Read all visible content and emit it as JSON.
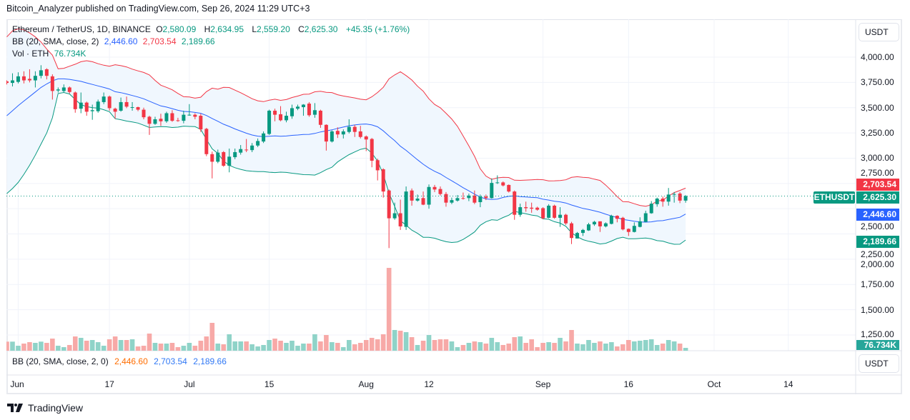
{
  "publication": "Bitcoin_Analyzer published on TradingView.com, Sep 26, 2024 11:29 UTC+3",
  "legend": {
    "symbol": "Ethereum / TetherUS, 1D, BINANCE",
    "open_label": "O",
    "open": "2,580.09",
    "high_label": "H",
    "high": "2,634.95",
    "low_label": "L",
    "low": "2,559.20",
    "close_label": "C",
    "close": "2,625.30",
    "change": "+45.35 (+1.76%)",
    "bb_label": "BB (20, SMA, close, 2)",
    "bb_basis": "2,446.60",
    "bb_upper": "2,703.54",
    "bb_lower": "2,189.66",
    "vol_label": "Vol · ETH",
    "vol_value": "76.734K"
  },
  "bottom_pane": {
    "bb_label": "BB (20, SMA, close, 2, 0)",
    "values": [
      "2,446.60",
      "2,703.54",
      "2,189.66"
    ],
    "unit_button": "USDT"
  },
  "price_axis": {
    "unit_button": "USDT",
    "ticks": [
      "4,000.00",
      "3,750.00",
      "3,500.00",
      "3,250.00",
      "3,000.00",
      "2,750.00",
      "2,500.00",
      "2,250.00",
      "2,000.00",
      "1,750.00",
      "1,500.00",
      "1,250.00"
    ],
    "tags": {
      "upper": "2,703.54",
      "last": "2,625.30",
      "symbol": "ETHUSDT",
      "basis": "2,446.60",
      "lower": "2,189.66",
      "volume": "76.734K"
    }
  },
  "footer": {
    "brand": "TradingView"
  },
  "colors": {
    "up": "#089981",
    "down": "#f23645",
    "basis": "#2962ff",
    "upper": "#f23645",
    "lower": "#089981",
    "vol_up": "#8fd3c8",
    "vol_down": "#f7a9a7",
    "band_fill": "#f0f7fe"
  },
  "chart_data": {
    "type": "candlestick",
    "title": "Ethereum / TetherUS, 1D, BINANCE",
    "xlabel": "",
    "ylabel": "",
    "ylim": [
      1200,
      4300
    ],
    "y_ticks": [
      4000,
      3750,
      3500,
      3250,
      3000,
      2750,
      2500,
      2250,
      2000,
      1750,
      1500,
      1250
    ],
    "grid": true,
    "x_ticks": [
      {
        "label": "Jun",
        "date": "2024-06-01"
      },
      {
        "label": "17",
        "date": "2024-06-17"
      },
      {
        "label": "Jul",
        "date": "2024-07-01"
      },
      {
        "label": "15",
        "date": "2024-07-15"
      },
      {
        "label": "Aug",
        "date": "2024-08-01"
      },
      {
        "label": "12",
        "date": "2024-08-12"
      },
      {
        "label": "Sep",
        "date": "2024-09-01"
      },
      {
        "label": "16",
        "date": "2024-09-16"
      },
      {
        "label": "Oct",
        "date": "2024-10-01"
      },
      {
        "label": "14",
        "date": "2024-10-14"
      }
    ],
    "first_date": "2024-05-30",
    "interval": "1D",
    "candle_fields": [
      "open",
      "high",
      "low",
      "close",
      "volume_k"
    ],
    "candles": [
      [
        3760,
        3770,
        3730,
        3745,
        244
      ],
      [
        3745,
        3840,
        3710,
        3770,
        244
      ],
      [
        3755,
        3850,
        3740,
        3810,
        134
      ],
      [
        3810,
        3860,
        3740,
        3770,
        192
      ],
      [
        3785,
        3880,
        3750,
        3770,
        230
      ],
      [
        3770,
        3860,
        3700,
        3815,
        211
      ],
      [
        3815,
        3920,
        3790,
        3870,
        244
      ],
      [
        3880,
        3890,
        3780,
        3815,
        211
      ],
      [
        3810,
        3830,
        3580,
        3665,
        326
      ],
      [
        3670,
        3700,
        3650,
        3680,
        134
      ],
      [
        3665,
        3730,
        3650,
        3700,
        96
      ],
      [
        3700,
        3710,
        3640,
        3655,
        154
      ],
      [
        3650,
        3660,
        3450,
        3485,
        384
      ],
      [
        3490,
        3650,
        3445,
        3550,
        346
      ],
      [
        3550,
        3560,
        3420,
        3460,
        269
      ],
      [
        3465,
        3530,
        3380,
        3475,
        288
      ],
      [
        3465,
        3580,
        3450,
        3560,
        230
      ],
      [
        3555,
        3650,
        3535,
        3610,
        134
      ],
      [
        3610,
        3620,
        3470,
        3495,
        307
      ],
      [
        3490,
        3500,
        3390,
        3460,
        384
      ],
      [
        3470,
        3600,
        3460,
        3555,
        288
      ],
      [
        3555,
        3610,
        3495,
        3510,
        288
      ],
      [
        3500,
        3555,
        3470,
        3505,
        307
      ],
      [
        3505,
        3510,
        3465,
        3480,
        115
      ],
      [
        3480,
        3500,
        3385,
        3405,
        134
      ],
      [
        3410,
        3420,
        3230,
        3340,
        461
      ],
      [
        3340,
        3410,
        3330,
        3385,
        211
      ],
      [
        3390,
        3440,
        3320,
        3365,
        192
      ],
      [
        3365,
        3460,
        3350,
        3445,
        192
      ],
      [
        3445,
        3475,
        3360,
        3370,
        211
      ],
      [
        3375,
        3400,
        3360,
        3370,
        96
      ],
      [
        3370,
        3470,
        3345,
        3430,
        134
      ],
      [
        3425,
        3535,
        3420,
        3430,
        211
      ],
      [
        3430,
        3445,
        3385,
        3410,
        134
      ],
      [
        3420,
        3440,
        3260,
        3285,
        269
      ],
      [
        3290,
        3300,
        3020,
        3040,
        384
      ],
      [
        3040,
        3065,
        2800,
        2965,
        749
      ],
      [
        2965,
        3085,
        2950,
        3055,
        192
      ],
      [
        3060,
        3070,
        2915,
        2925,
        173
      ],
      [
        2925,
        3095,
        2860,
        3015,
        442
      ],
      [
        3010,
        3095,
        2990,
        3060,
        250
      ],
      [
        3055,
        3130,
        3035,
        3090,
        250
      ],
      [
        3085,
        3190,
        3060,
        3080,
        250
      ],
      [
        3080,
        3150,
        3060,
        3125,
        173
      ],
      [
        3125,
        3195,
        3110,
        3170,
        115
      ],
      [
        3165,
        3265,
        3150,
        3245,
        154
      ],
      [
        3240,
        3480,
        3230,
        3470,
        288
      ],
      [
        3470,
        3490,
        3365,
        3430,
        326
      ],
      [
        3435,
        3515,
        3365,
        3375,
        269
      ],
      [
        3375,
        3460,
        3355,
        3420,
        211
      ],
      [
        3415,
        3530,
        3390,
        3495,
        269
      ],
      [
        3490,
        3530,
        3475,
        3510,
        134
      ],
      [
        3505,
        3535,
        3420,
        3530,
        192
      ],
      [
        3540,
        3555,
        3410,
        3425,
        192
      ],
      [
        3430,
        3545,
        3400,
        3475,
        442
      ],
      [
        3470,
        3480,
        3300,
        3330,
        250
      ],
      [
        3330,
        3335,
        3075,
        3165,
        422
      ],
      [
        3165,
        3275,
        3155,
        3265,
        230
      ],
      [
        3270,
        3305,
        3200,
        3235,
        211
      ],
      [
        3235,
        3285,
        3195,
        3265,
        96
      ],
      [
        3260,
        3385,
        3245,
        3310,
        288
      ],
      [
        3310,
        3330,
        3210,
        3260,
        173
      ],
      [
        3265,
        3320,
        3195,
        3210,
        211
      ],
      [
        3215,
        3225,
        3070,
        3185,
        288
      ],
      [
        3190,
        3200,
        2910,
        2975,
        346
      ],
      [
        2980,
        2995,
        2780,
        2880,
        307
      ],
      [
        2890,
        2900,
        2610,
        2670,
        442
      ],
      [
        2680,
        2690,
        2110,
        2405,
        2227
      ],
      [
        2405,
        2560,
        2390,
        2455,
        557
      ],
      [
        2455,
        2590,
        2290,
        2325,
        538
      ],
      [
        2320,
        2720,
        2290,
        2670,
        499
      ],
      [
        2680,
        2700,
        2530,
        2580,
        365
      ],
      [
        2580,
        2640,
        2570,
        2600,
        154
      ],
      [
        2605,
        2670,
        2535,
        2540,
        269
      ],
      [
        2540,
        2740,
        2500,
        2715,
        422
      ],
      [
        2715,
        2735,
        2665,
        2690,
        288
      ],
      [
        2695,
        2720,
        2630,
        2645,
        307
      ],
      [
        2645,
        2665,
        2520,
        2560,
        307
      ],
      [
        2560,
        2610,
        2545,
        2585,
        250
      ],
      [
        2580,
        2635,
        2570,
        2605,
        96
      ],
      [
        2605,
        2660,
        2590,
        2600,
        154
      ],
      [
        2605,
        2650,
        2575,
        2630,
        211
      ],
      [
        2630,
        2680,
        2545,
        2560,
        250
      ],
      [
        2565,
        2640,
        2515,
        2620,
        230
      ],
      [
        2620,
        2640,
        2585,
        2605,
        192
      ],
      [
        2605,
        2800,
        2600,
        2755,
        346
      ],
      [
        2755,
        2830,
        2745,
        2760,
        230
      ],
      [
        2760,
        2770,
        2720,
        2730,
        154
      ],
      [
        2735,
        2740,
        2660,
        2670,
        192
      ],
      [
        2670,
        2680,
        2390,
        2440,
        365
      ],
      [
        2440,
        2550,
        2420,
        2515,
        384
      ],
      [
        2515,
        2570,
        2470,
        2505,
        211
      ],
      [
        2510,
        2560,
        2460,
        2500,
        307
      ],
      [
        2510,
        2520,
        2480,
        2490,
        96
      ],
      [
        2505,
        2515,
        2395,
        2405,
        211
      ],
      [
        2410,
        2545,
        2405,
        2530,
        230
      ],
      [
        2530,
        2540,
        2400,
        2410,
        211
      ],
      [
        2410,
        2515,
        2320,
        2440,
        346
      ],
      [
        2440,
        2450,
        2340,
        2355,
        250
      ],
      [
        2355,
        2370,
        2150,
        2210,
        557
      ],
      [
        2205,
        2270,
        2205,
        2260,
        192
      ],
      [
        2260,
        2300,
        2230,
        2290,
        173
      ],
      [
        2285,
        2360,
        2280,
        2345,
        288
      ],
      [
        2345,
        2380,
        2330,
        2370,
        211
      ],
      [
        2375,
        2375,
        2270,
        2325,
        250
      ],
      [
        2325,
        2365,
        2315,
        2355,
        192
      ],
      [
        2350,
        2440,
        2345,
        2430,
        230
      ],
      [
        2430,
        2435,
        2365,
        2400,
        115
      ],
      [
        2410,
        2420,
        2285,
        2295,
        173
      ],
      [
        2300,
        2305,
        2230,
        2270,
        288
      ],
      [
        2270,
        2365,
        2265,
        2330,
        250
      ],
      [
        2320,
        2415,
        2315,
        2375,
        269
      ],
      [
        2370,
        2480,
        2365,
        2455,
        288
      ],
      [
        2455,
        2575,
        2450,
        2550,
        307
      ],
      [
        2545,
        2610,
        2520,
        2600,
        154
      ],
      [
        2600,
        2620,
        2520,
        2570,
        192
      ],
      [
        2570,
        2705,
        2530,
        2640,
        288
      ],
      [
        2640,
        2665,
        2560,
        2645,
        250
      ],
      [
        2650,
        2665,
        2555,
        2580,
        192
      ],
      [
        2580.09,
        2634.95,
        2559.2,
        2625.3,
        76.734
      ]
    ],
    "bollinger": {
      "period": 20,
      "mult": 2,
      "first_19": {
        "upper": [
          4200,
          4260,
          4280,
          4270,
          4240,
          4200,
          4150,
          4080,
          4020,
          3885,
          3890,
          3910,
          3930,
          3955,
          3965,
          3955,
          3935,
          3920,
          3910
        ],
        "basis": [
          3420,
          3470,
          3520,
          3565,
          3610,
          3655,
          3700,
          3735,
          3765,
          3785,
          3785,
          3780,
          3770,
          3760,
          3745,
          3730,
          3715,
          3700,
          3685
        ],
        "lower": [
          2650,
          2700,
          2760,
          2840,
          2930,
          3030,
          3140,
          3250,
          3400,
          3640,
          3650,
          3635,
          3580,
          3530,
          3510,
          3500,
          3495,
          3480,
          3460
        ]
      },
      "last": {
        "basis": 2446.6,
        "upper": 2703.54,
        "lower": 2189.66
      }
    },
    "last_price": 2625.3
  }
}
